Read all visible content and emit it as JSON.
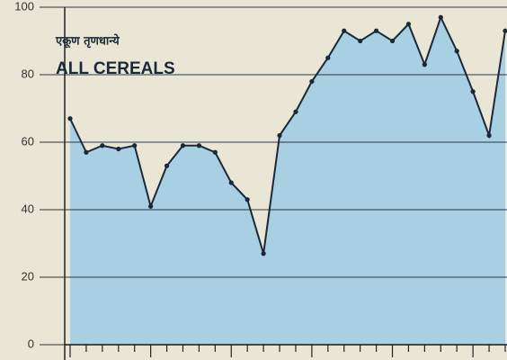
{
  "chart_data": {
    "type": "area",
    "title": "एकूण तृणधान्ये",
    "subtitle": "ALL CEREALS",
    "categories": [
      null,
      null,
      null,
      null,
      null,
      null,
      null,
      null,
      null,
      null,
      null,
      null,
      null,
      null,
      null,
      null,
      null,
      null,
      null,
      null,
      null,
      null,
      null,
      null,
      null,
      null,
      null,
      null
    ],
    "series": [
      {
        "color": "#a8cfe2",
        "line_color": "#1b2838",
        "values": [
          67,
          57,
          59,
          58,
          59,
          41,
          53,
          59,
          59,
          57,
          48,
          43,
          27,
          62,
          69,
          78,
          85,
          93,
          90,
          93,
          90,
          95,
          83,
          97,
          87,
          75,
          62,
          93
        ]
      }
    ],
    "ylim": [
      0,
      100
    ],
    "yticks": [
      0,
      20,
      40,
      60,
      80,
      100
    ],
    "grid": true
  }
}
